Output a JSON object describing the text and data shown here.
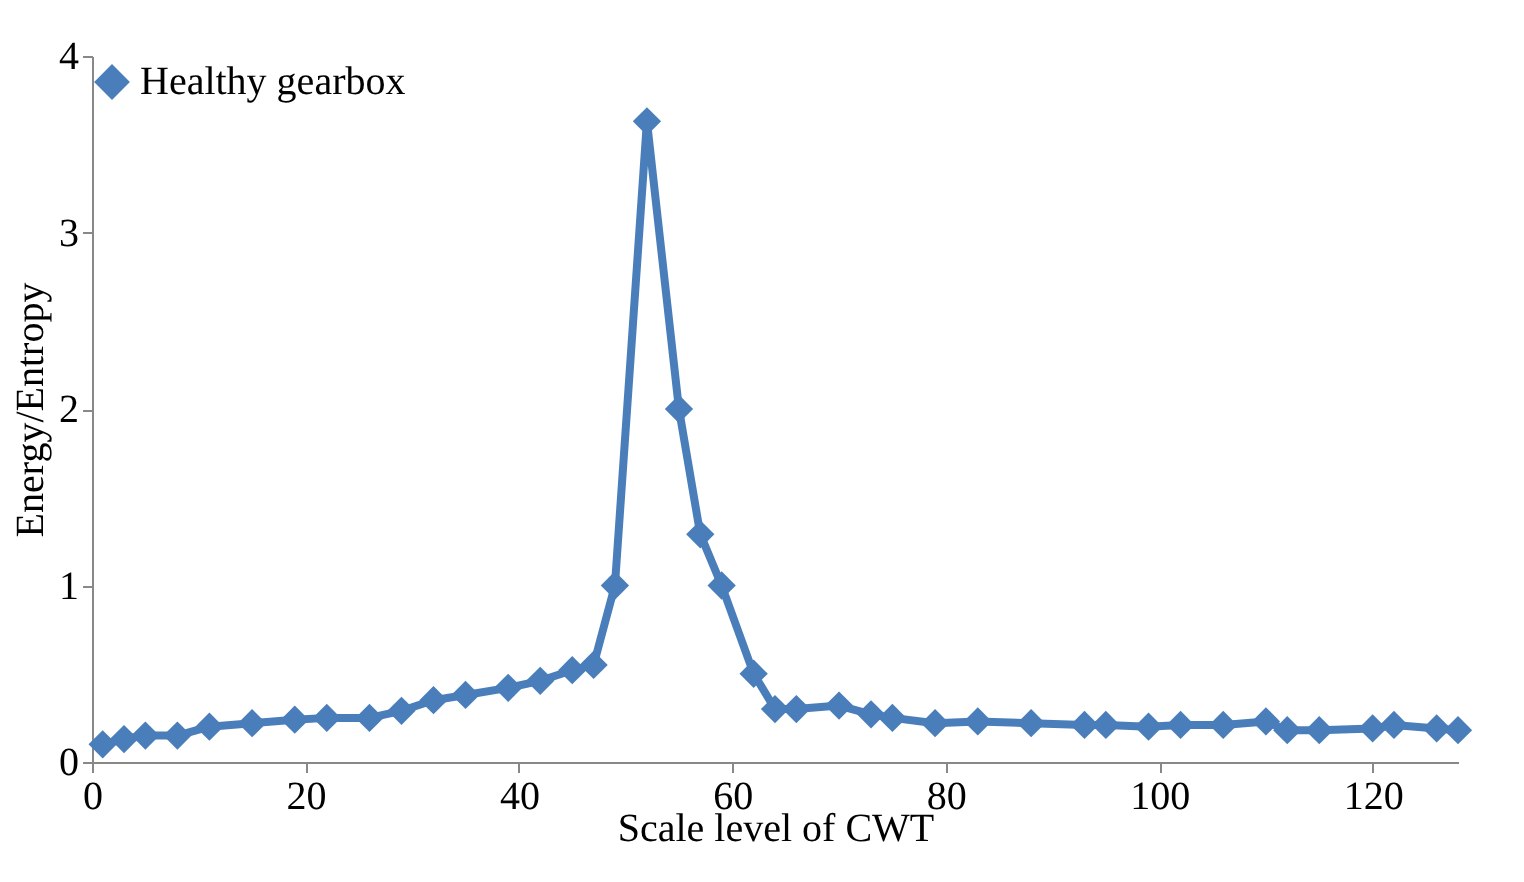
{
  "chart_data": {
    "type": "line",
    "xlabel": "Scale level of CWT",
    "ylabel": "Energy/Entropy",
    "xlim": [
      0,
      128
    ],
    "xticks": [
      0,
      20,
      40,
      60,
      80,
      100,
      120
    ],
    "ylim": [
      0,
      4
    ],
    "yticks": [
      0,
      1,
      2,
      3,
      4
    ],
    "grid": false,
    "legend": "top",
    "marker": "diamond",
    "line_style": "solid",
    "series": [
      {
        "name": "Healthy gearbox",
        "color": "#4a7ebb",
        "x": [
          1,
          3,
          5,
          8,
          11,
          15,
          19,
          22,
          26,
          29,
          32,
          35,
          39,
          42,
          45,
          47,
          49,
          52,
          55,
          57,
          59,
          62,
          64,
          66,
          70,
          73,
          75,
          79,
          83,
          88,
          93,
          95,
          99,
          102,
          106,
          110,
          112,
          115,
          120,
          122,
          126,
          128
        ],
        "values": [
          0.1,
          0.13,
          0.15,
          0.15,
          0.2,
          0.22,
          0.24,
          0.25,
          0.25,
          0.29,
          0.35,
          0.38,
          0.42,
          0.46,
          0.52,
          0.55,
          1.0,
          3.63,
          2.0,
          1.29,
          1.0,
          0.5,
          0.3,
          0.3,
          0.32,
          0.27,
          0.25,
          0.22,
          0.23,
          0.22,
          0.21,
          0.21,
          0.2,
          0.21,
          0.21,
          0.23,
          0.18,
          0.18,
          0.19,
          0.21,
          0.19,
          0.18
        ]
      }
    ]
  }
}
